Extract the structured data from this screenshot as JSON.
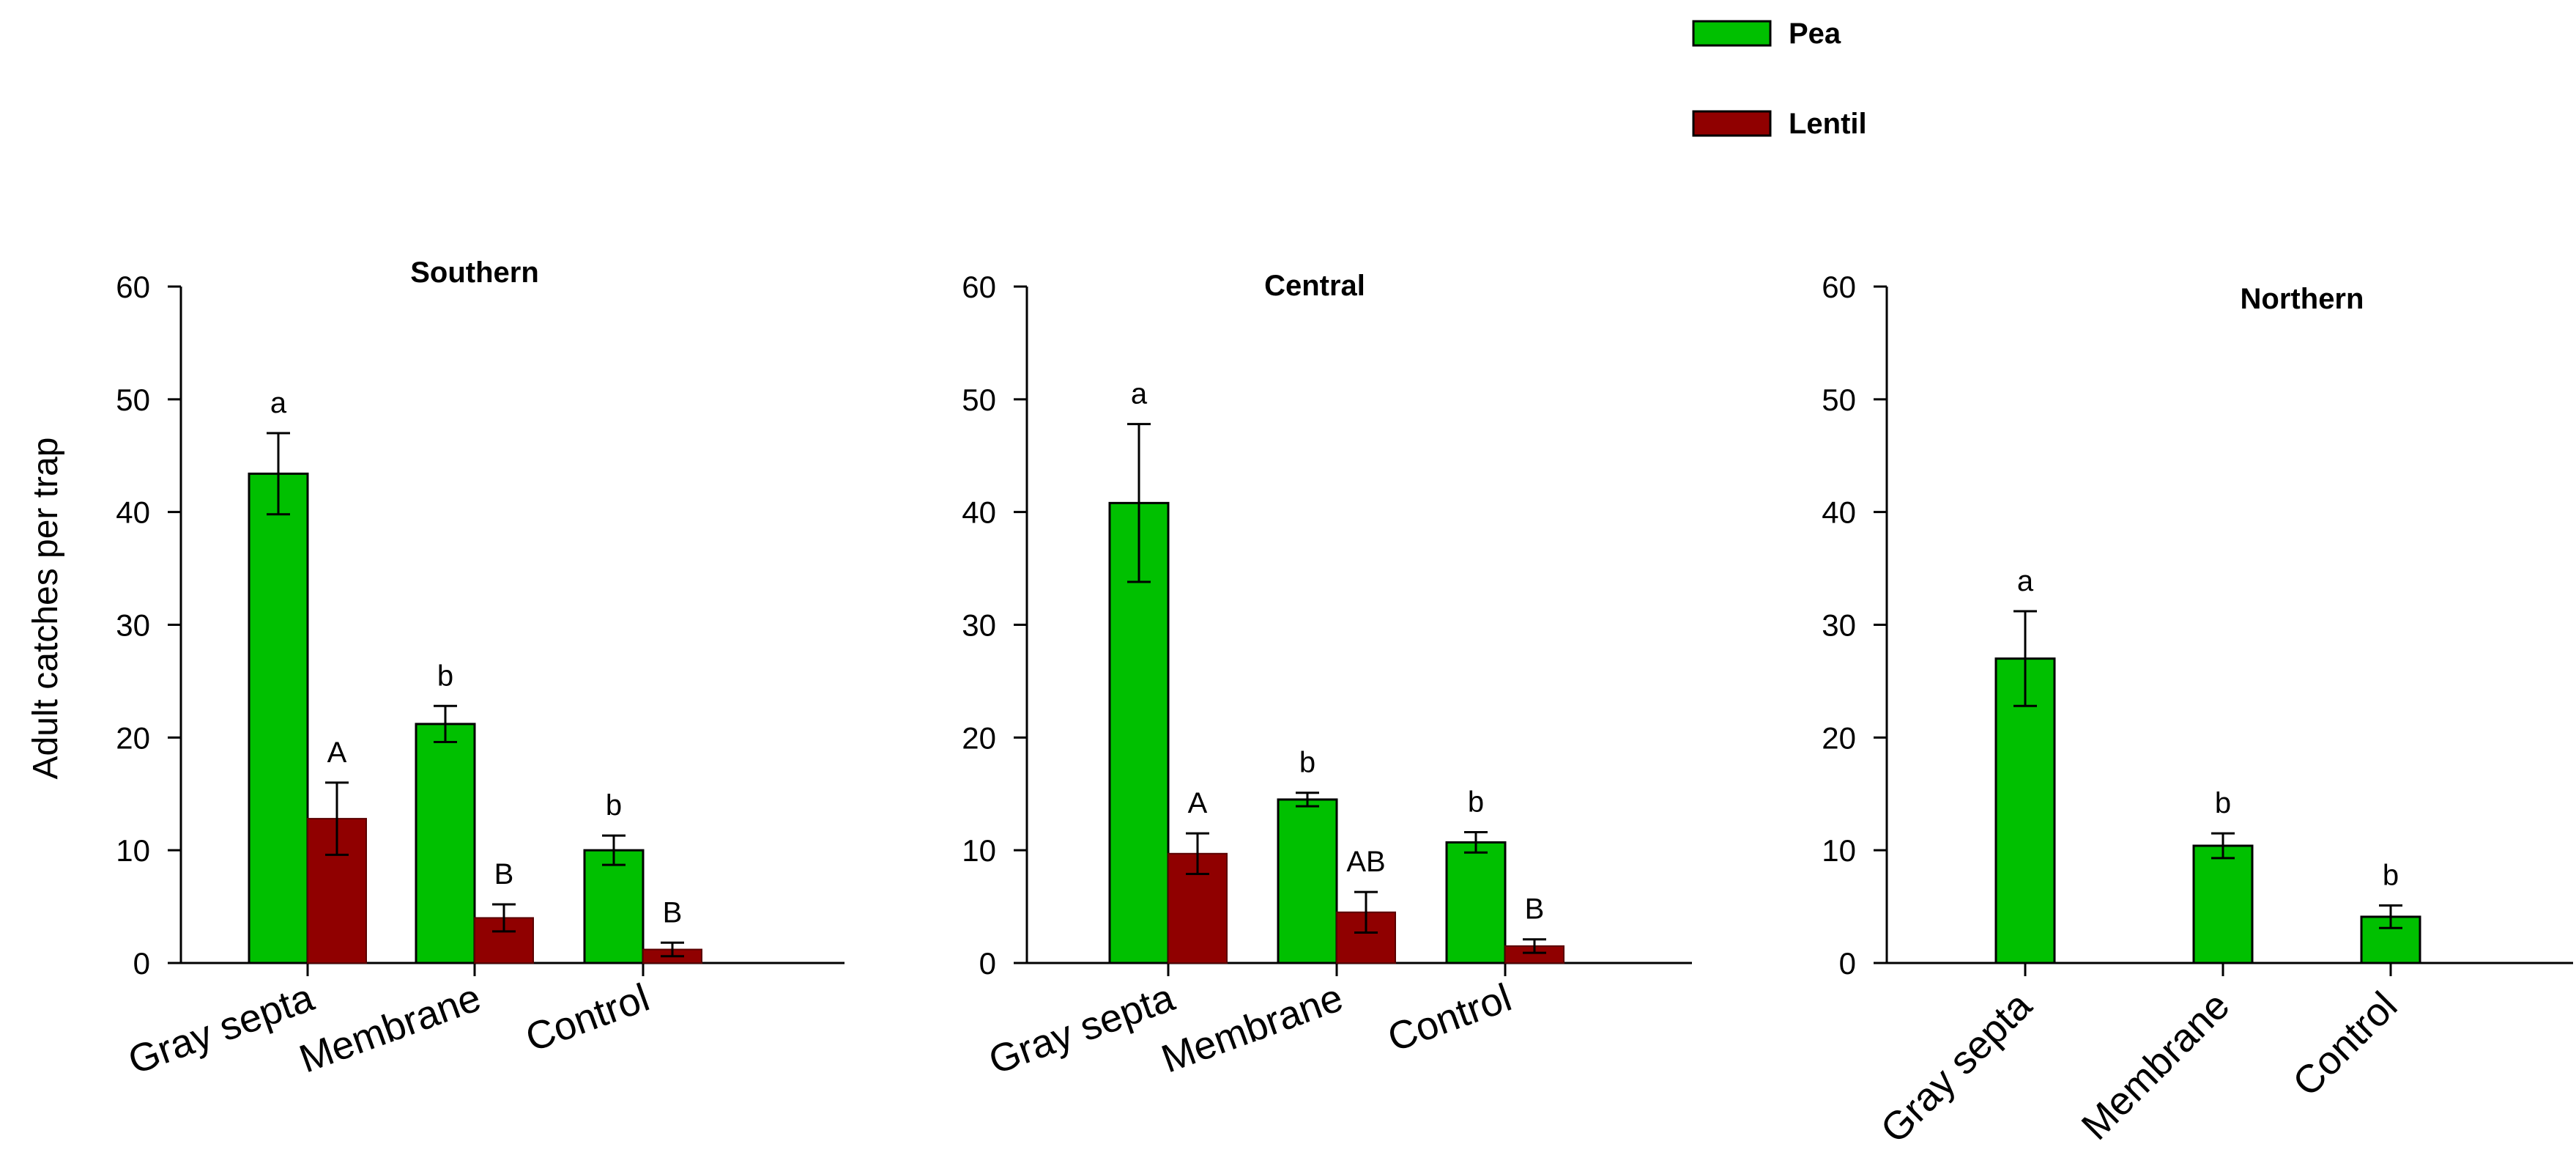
{
  "legend": {
    "items": [
      {
        "label": "Pea",
        "color": "#00c000"
      },
      {
        "label": "Lentil",
        "color": "#900000"
      }
    ]
  },
  "ylabel": "Adult catches per trap",
  "chart_data": [
    {
      "type": "bar",
      "title": "Southern",
      "categories": [
        "Gray septa",
        "Membrane",
        "Control"
      ],
      "ylim": [
        0,
        60
      ],
      "yticks": [
        0,
        10,
        20,
        30,
        40,
        50,
        60
      ],
      "series": [
        {
          "name": "Pea",
          "color": "#00c000",
          "values": [
            43.4,
            21.2,
            10.0
          ],
          "errors": [
            3.6,
            1.6,
            1.3
          ],
          "letters": [
            "a",
            "b",
            "b"
          ]
        },
        {
          "name": "Lentil",
          "color": "#900000",
          "values": [
            12.8,
            4.0,
            1.2
          ],
          "errors": [
            3.2,
            1.2,
            0.6
          ],
          "letters": [
            "A",
            "B",
            "B"
          ]
        }
      ]
    },
    {
      "type": "bar",
      "title": "Central",
      "categories": [
        "Gray septa",
        "Membrane",
        "Control"
      ],
      "ylim": [
        0,
        60
      ],
      "yticks": [
        0,
        10,
        20,
        30,
        40,
        50,
        60
      ],
      "series": [
        {
          "name": "Pea",
          "color": "#00c000",
          "values": [
            40.8,
            14.5,
            10.7
          ],
          "errors": [
            7.0,
            0.6,
            0.9
          ],
          "letters": [
            "a",
            "b",
            "b"
          ]
        },
        {
          "name": "Lentil",
          "color": "#900000",
          "values": [
            9.7,
            4.5,
            1.5
          ],
          "errors": [
            1.8,
            1.8,
            0.6
          ],
          "letters": [
            "A",
            "AB",
            "B"
          ]
        }
      ]
    },
    {
      "type": "bar",
      "title": "Northern",
      "categories": [
        "Gray septa",
        "Membrane",
        "Control"
      ],
      "ylim": [
        0,
        60
      ],
      "yticks": [
        0,
        10,
        20,
        30,
        40,
        50,
        60
      ],
      "series": [
        {
          "name": "Pea",
          "color": "#00c000",
          "values": [
            27.0,
            10.4,
            4.1
          ],
          "errors": [
            4.2,
            1.1,
            1.0
          ],
          "letters": [
            "a",
            "b",
            "b"
          ]
        }
      ]
    }
  ]
}
